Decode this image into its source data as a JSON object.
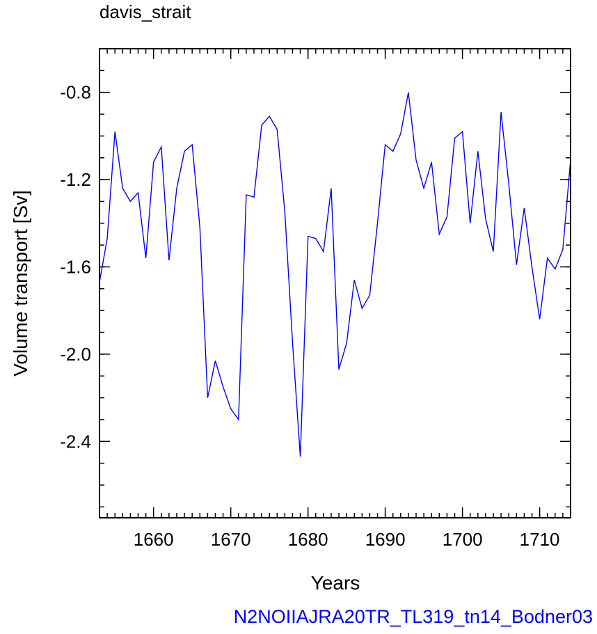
{
  "chart_data": {
    "type": "line",
    "title": "davis_strait",
    "xlabel": "Years",
    "ylabel": "Volume transport [Sv]",
    "xlim": [
      1653,
      1714
    ],
    "ylim": [
      -2.75,
      -0.6
    ],
    "x_ticks": [
      1660,
      1670,
      1680,
      1690,
      1700,
      1710
    ],
    "y_ticks": [
      -2.4,
      -2.0,
      -1.6,
      -1.2,
      -0.8
    ],
    "y_tick_labels": [
      "-2.4",
      "-2.0",
      "-1.6",
      "-1.2",
      "-0.8"
    ],
    "grid": false,
    "line_color": "#0000ff",
    "series": [
      {
        "x": [
          1653,
          1654,
          1655,
          1656,
          1657,
          1658,
          1659,
          1660,
          1661,
          1662,
          1663,
          1664,
          1665,
          1666,
          1667,
          1668,
          1669,
          1670,
          1671,
          1672,
          1673,
          1674,
          1675,
          1676,
          1677,
          1678,
          1679,
          1680,
          1681,
          1682,
          1683,
          1684,
          1685,
          1686,
          1687,
          1688,
          1689,
          1690,
          1691,
          1692,
          1693,
          1694,
          1695,
          1696,
          1697,
          1698,
          1699,
          1700,
          1701,
          1702,
          1703,
          1704,
          1705,
          1706,
          1707,
          1708,
          1709,
          1710,
          1711,
          1712,
          1713,
          1714
        ],
        "values": [
          -1.67,
          -1.47,
          -0.98,
          -1.24,
          -1.3,
          -1.26,
          -1.56,
          -1.12,
          -1.05,
          -1.57,
          -1.24,
          -1.07,
          -1.04,
          -1.42,
          -2.2,
          -2.03,
          -2.15,
          -2.25,
          -2.3,
          -1.27,
          -1.28,
          -0.95,
          -0.91,
          -0.97,
          -1.35,
          -1.95,
          -2.47,
          -1.46,
          -1.47,
          -1.53,
          -1.24,
          -2.07,
          -1.95,
          -1.66,
          -1.79,
          -1.73,
          -1.4,
          -1.04,
          -1.07,
          -0.99,
          -0.8,
          -1.11,
          -1.24,
          -1.12,
          -1.45,
          -1.37,
          -1.01,
          -0.98,
          -1.4,
          -1.07,
          -1.38,
          -1.53,
          -0.89,
          -1.22,
          -1.59,
          -1.33,
          -1.6,
          -1.84,
          -1.56,
          -1.61,
          -1.52,
          -1.11
        ]
      }
    ]
  },
  "footer": "N2NOIIAJRA20TR_TL319_tn14_Bodner03"
}
